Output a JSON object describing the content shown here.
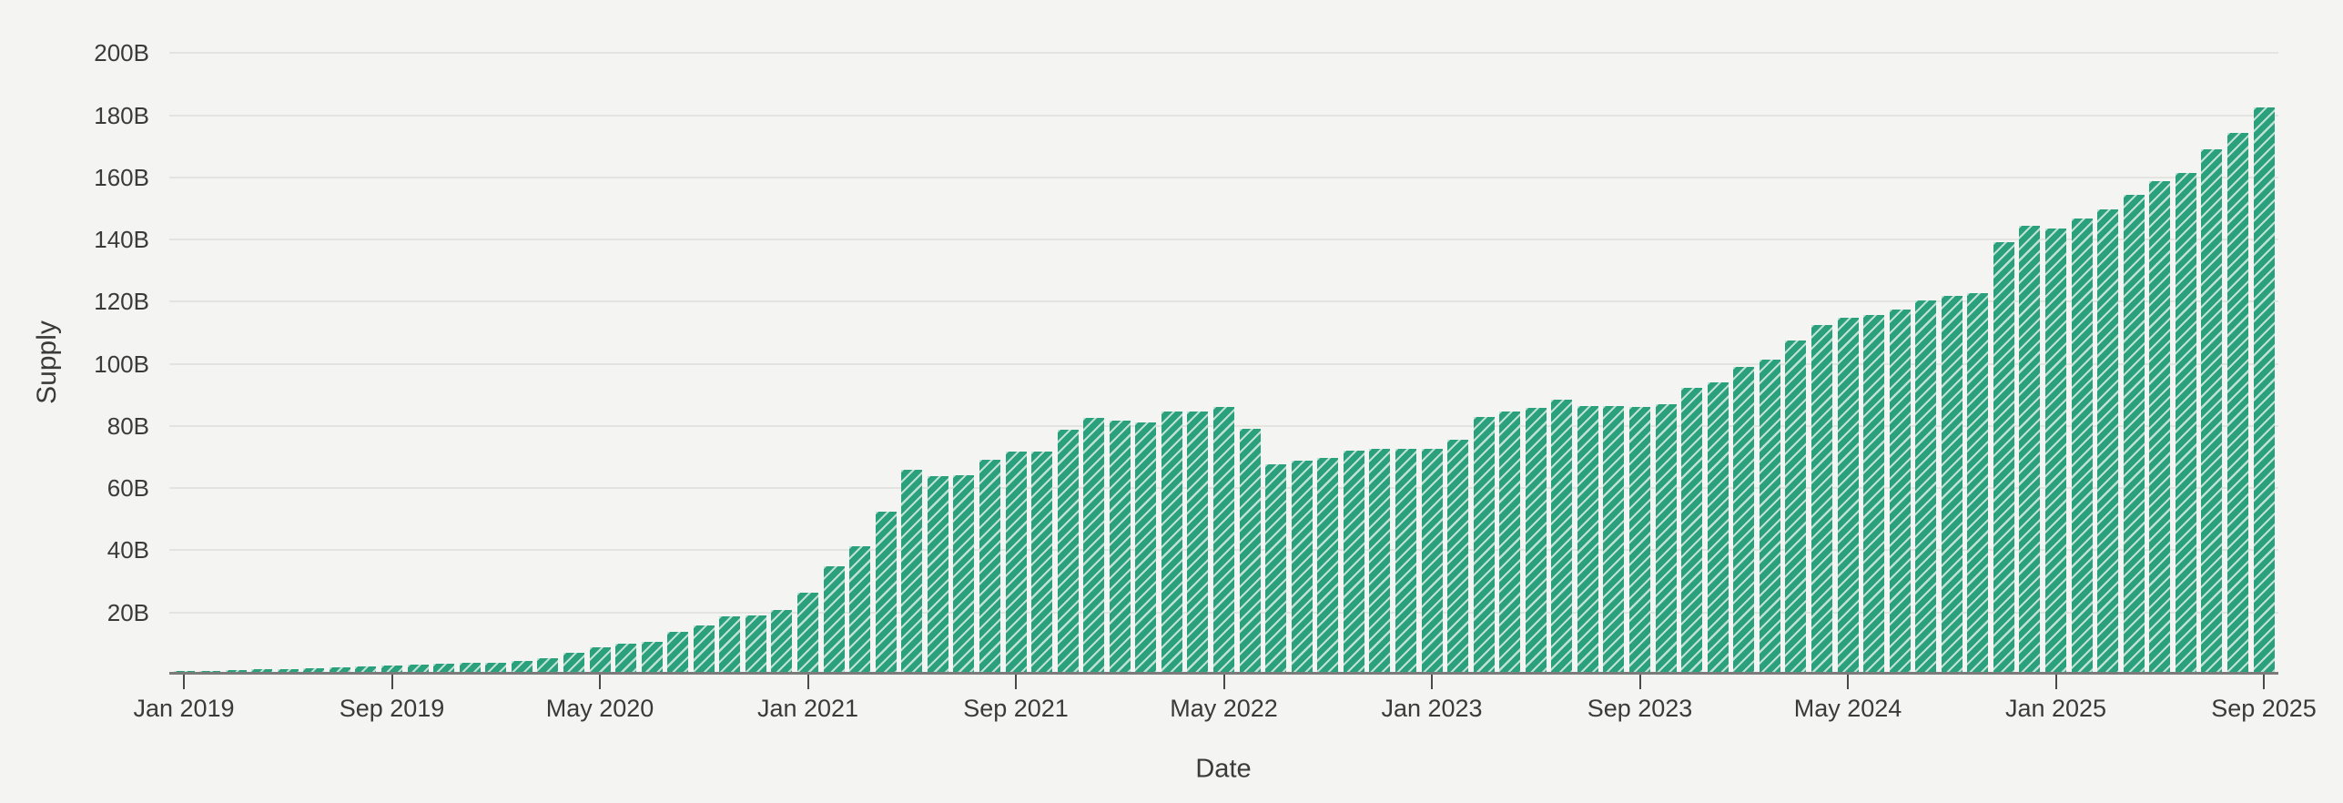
{
  "colors": {
    "background": "#f4f4f2",
    "bar": "#2aa17c",
    "bar_stripe": "#bfe2d4",
    "gridline": "#e3e3e0",
    "axis_line": "#7b7b7b",
    "tick": "#4a4a4a",
    "text": "#3a3a3a"
  },
  "chart_data": {
    "type": "bar",
    "title": "",
    "xlabel": "Date",
    "ylabel": "Supply",
    "ylim": [
      0,
      200
    ],
    "grid": true,
    "legend": "none",
    "bar_pattern": "diagonal-stripes",
    "y_ticks": [
      {
        "value": 20,
        "label": "20B"
      },
      {
        "value": 40,
        "label": "40B"
      },
      {
        "value": 60,
        "label": "60B"
      },
      {
        "value": 80,
        "label": "80B"
      },
      {
        "value": 100,
        "label": "100B"
      },
      {
        "value": 120,
        "label": "120B"
      },
      {
        "value": 140,
        "label": "140B"
      },
      {
        "value": 160,
        "label": "160B"
      },
      {
        "value": 180,
        "label": "180B"
      },
      {
        "value": 200,
        "label": "200B"
      }
    ],
    "x_tick_every": 8,
    "x_tick_labels": [
      "Jan 2019",
      "Sep 2019",
      "May 2020",
      "Jan 2021",
      "Sep 2021",
      "May 2022",
      "Jan 2023",
      "Sep 2023",
      "May 2024",
      "Jan 2025",
      "Sep 2025"
    ],
    "categories": [
      "Jan 2019",
      "Feb 2019",
      "Mar 2019",
      "Apr 2019",
      "May 2019",
      "Jun 2019",
      "Jul 2019",
      "Aug 2019",
      "Sep 2019",
      "Oct 2019",
      "Nov 2019",
      "Dec 2019",
      "Jan 2020",
      "Feb 2020",
      "Mar 2020",
      "Apr 2020",
      "May 2020",
      "Jun 2020",
      "Jul 2020",
      "Aug 2020",
      "Sep 2020",
      "Oct 2020",
      "Nov 2020",
      "Dec 2020",
      "Jan 2021",
      "Feb 2021",
      "Mar 2021",
      "Apr 2021",
      "May 2021",
      "Jun 2021",
      "Jul 2021",
      "Aug 2021",
      "Sep 2021",
      "Oct 2021",
      "Nov 2021",
      "Dec 2021",
      "Jan 2022",
      "Feb 2022",
      "Mar 2022",
      "Apr 2022",
      "May 2022",
      "Jun 2022",
      "Jul 2022",
      "Aug 2022",
      "Sep 2022",
      "Oct 2022",
      "Nov 2022",
      "Dec 2022",
      "Jan 2023",
      "Feb 2023",
      "Mar 2023",
      "Apr 2023",
      "May 2023",
      "Jun 2023",
      "Jul 2023",
      "Aug 2023",
      "Sep 2023",
      "Oct 2023",
      "Nov 2023",
      "Dec 2023",
      "Jan 2024",
      "Feb 2024",
      "Mar 2024",
      "Apr 2024",
      "May 2024",
      "Jun 2024",
      "Jul 2024",
      "Aug 2024",
      "Sep 2024",
      "Oct 2024",
      "Nov 2024",
      "Dec 2024",
      "Jan 2025",
      "Feb 2025",
      "Mar 2025",
      "Apr 2025",
      "May 2025",
      "Jun 2025",
      "Jul 2025",
      "Aug 2025",
      "Sep 2025"
    ],
    "values": [
      0.1,
      0.3,
      0.6,
      0.8,
      1.0,
      1.2,
      1.5,
      1.8,
      2.0,
      2.3,
      2.5,
      2.8,
      3.0,
      3.4,
      4.4,
      6.2,
      8.0,
      9.0,
      9.7,
      12.8,
      14.9,
      17.8,
      18.2,
      19.9,
      25.4,
      34.0,
      40.5,
      51.7,
      65.0,
      63.1,
      63.2,
      68.2,
      70.9,
      70.9,
      77.8,
      81.7,
      81.0,
      80.4,
      83.9,
      83.9,
      85.2,
      78.1,
      66.9,
      67.9,
      69.0,
      71.2,
      71.9,
      71.9,
      71.9,
      74.7,
      81.9,
      83.7,
      84.9,
      87.6,
      85.7,
      85.7,
      85.4,
      86.2,
      91.3,
      93.3,
      98.1,
      100.4,
      106.6,
      111.7,
      114.0,
      114.8,
      116.6,
      119.6,
      120.9,
      121.8,
      138.2,
      143.6,
      142.8,
      145.8,
      148.7,
      153.5,
      157.8,
      160.5,
      168.3,
      173.5,
      181.8
    ]
  }
}
